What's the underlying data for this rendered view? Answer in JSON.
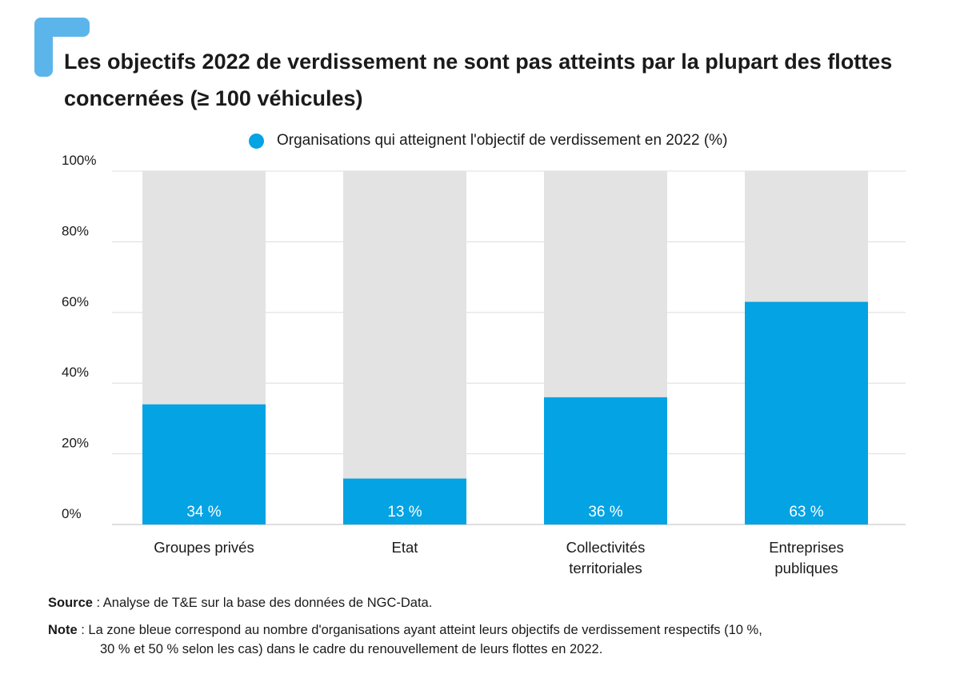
{
  "title": "Les objectifs 2022 de verdissement ne sont pas atteints par la plupart des flottes concernées (≥ 100 véhicules)",
  "legend": {
    "label": "Organisations qui atteignent l'objectif de verdissement en 2022 (%)"
  },
  "colors": {
    "accent": "#04a3e4",
    "background_bar": "#e3e3e3",
    "grid": "#dddddd",
    "corner": "#5cb5ea"
  },
  "chart_data": {
    "type": "bar",
    "stacked_background": true,
    "categories": [
      "Groupes privés",
      "Etat",
      "Collectivités territoriales",
      "Entreprises publiques"
    ],
    "category_lines": [
      [
        "Groupes privés"
      ],
      [
        "Etat"
      ],
      [
        "Collectivités",
        "territoriales"
      ],
      [
        "Entreprises",
        "publiques"
      ]
    ],
    "series": [
      {
        "name": "Organisations qui atteignent l'objectif de verdissement en 2022 (%)",
        "values": [
          34,
          13,
          36,
          63
        ]
      }
    ],
    "data_labels": [
      "34 %",
      "13 %",
      "36 %",
      "63 %"
    ],
    "yticks": [
      0,
      20,
      40,
      60,
      80,
      100
    ],
    "ytick_labels": [
      "0%",
      "20%",
      "40%",
      "60%",
      "80%",
      "100%"
    ],
    "ylim": [
      0,
      100
    ],
    "grid": true,
    "legend_position": "top"
  },
  "footer": {
    "source_key": "Source",
    "source_text": " : Analyse de T&E sur la base des données de NGC-Data.",
    "note_key": "Note",
    "note_text_1": " : La zone bleue correspond au nombre d'organisations ayant atteint leurs objectifs de verdissement respectifs (10 %,",
    "note_text_2": "30 % et 50 % selon les cas) dans le cadre du renouvellement de leurs flottes en 2022."
  }
}
